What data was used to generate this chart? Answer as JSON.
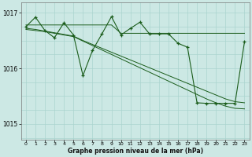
{
  "title": "Graphe pression niveau de la mer (hPa)",
  "background_color": "#cce8e4",
  "grid_color": "#aad4cf",
  "line_color": "#1a5c1a",
  "xlim": [
    -0.5,
    23.5
  ],
  "ylim": [
    1014.72,
    1017.18
  ],
  "yticks": [
    1015,
    1016,
    1017
  ],
  "xticks": [
    0,
    1,
    2,
    3,
    4,
    5,
    6,
    7,
    8,
    9,
    10,
    11,
    12,
    13,
    14,
    15,
    16,
    17,
    18,
    19,
    20,
    21,
    22,
    23
  ],
  "main_y": [
    1016.75,
    1016.92,
    1016.68,
    1016.55,
    1016.82,
    1016.6,
    1015.87,
    1016.32,
    1016.62,
    1016.93,
    1016.6,
    1016.72,
    1016.83,
    1016.62,
    1016.62,
    1016.62,
    1016.45,
    1016.38,
    1015.38,
    1015.37,
    1015.37,
    1015.37,
    1015.37,
    1016.48
  ],
  "s1_y": [
    1016.78,
    1016.78,
    1016.78,
    1016.78,
    1016.78,
    1016.78,
    1016.78,
    1016.78,
    1016.78,
    1016.78,
    1016.63,
    1016.63,
    1016.63,
    1016.63,
    1016.63,
    1016.63,
    1016.63,
    1016.63,
    1016.63,
    1016.63,
    1016.63,
    1016.63,
    1016.63,
    1016.63
  ],
  "s2_y": [
    1016.72,
    1016.7,
    1016.67,
    1016.64,
    1016.61,
    1016.58,
    1016.5,
    1016.43,
    1016.36,
    1016.29,
    1016.22,
    1016.15,
    1016.08,
    1016.01,
    1015.94,
    1015.87,
    1015.8,
    1015.73,
    1015.66,
    1015.59,
    1015.52,
    1015.45,
    1015.4,
    1015.38
  ],
  "s3_y": [
    1016.7,
    1016.68,
    1016.66,
    1016.63,
    1016.6,
    1016.57,
    1016.49,
    1016.41,
    1016.33,
    1016.25,
    1016.17,
    1016.09,
    1016.01,
    1015.93,
    1015.85,
    1015.77,
    1015.69,
    1015.61,
    1015.53,
    1015.45,
    1015.38,
    1015.32,
    1015.28,
    1015.27
  ]
}
